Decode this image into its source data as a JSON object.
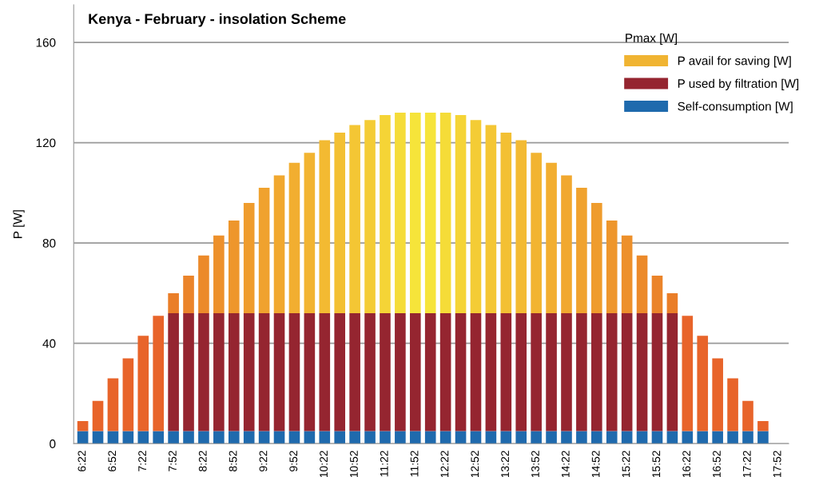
{
  "chart_data": {
    "type": "bar",
    "title": "Kenya - February - insolation Scheme",
    "ylabel": "P [W]",
    "legend_title": "Pmax [W]",
    "categories": [
      "6:22",
      null,
      "6:52",
      null,
      "7:22",
      null,
      "7:52",
      null,
      "8:22",
      null,
      "8:52",
      null,
      "9:22",
      null,
      "9:52",
      null,
      "10:22",
      null,
      "10:52",
      null,
      "11:22",
      null,
      "11:52",
      null,
      "12:22",
      null,
      "12:52",
      null,
      "13:22",
      null,
      "13:52",
      null,
      "14:22",
      null,
      "14:52",
      null,
      "15:22",
      null,
      "15:52",
      null,
      "16:22",
      null,
      "16:52",
      null,
      "17:22",
      null,
      "17:52"
    ],
    "stacked": true,
    "ylim": [
      0,
      175
    ],
    "yticks": [
      0,
      40,
      80,
      120,
      160
    ],
    "grid": "y",
    "legend": "top right",
    "series": [
      {
        "name": "Self-consumption [W]",
        "color": "#1f6aad",
        "values": [
          5,
          5,
          5,
          5,
          5,
          5,
          5,
          5,
          5,
          5,
          5,
          5,
          5,
          5,
          5,
          5,
          5,
          5,
          5,
          5,
          5,
          5,
          5,
          5,
          5,
          5,
          5,
          5,
          5,
          5,
          5,
          5,
          5,
          5,
          5,
          5,
          5,
          5,
          5,
          5,
          5,
          5,
          5,
          5,
          5,
          5,
          null
        ]
      },
      {
        "name": "P used by filtration [W]",
        "color": "#952530",
        "values": [
          null,
          null,
          null,
          null,
          null,
          null,
          47,
          47,
          47,
          47,
          47,
          47,
          47,
          47,
          47,
          47,
          47,
          47,
          47,
          47,
          47,
          47,
          47,
          47,
          47,
          47,
          47,
          47,
          47,
          47,
          47,
          47,
          47,
          47,
          47,
          47,
          47,
          47,
          47,
          47,
          null,
          null,
          null,
          null,
          null,
          null,
          null
        ]
      },
      {
        "name": "P avail for saving [W]",
        "color": "#f0b432",
        "values": [
          4,
          12,
          21,
          29,
          38,
          46,
          8,
          15,
          23,
          31,
          37,
          44,
          50,
          55,
          60,
          64,
          69,
          72,
          75,
          77,
          79,
          80,
          80,
          80,
          80,
          79,
          77,
          75,
          72,
          69,
          64,
          60,
          55,
          50,
          44,
          37,
          31,
          23,
          15,
          8,
          46,
          38,
          29,
          21,
          12,
          4,
          null
        ],
        "colors": [
          "#e8642a",
          "#e8642a",
          "#e8642a",
          "#e8642a",
          "#e8642a",
          "#e8642a",
          "#ea7e28",
          "#eb842a",
          "#ec8a2a",
          "#ed902b",
          "#ee962c",
          "#ef9c2d",
          "#f0a22e",
          "#f1a82f",
          "#f2ae30",
          "#f2b431",
          "#f3ba32",
          "#f3c033",
          "#f4c634",
          "#f4cc35",
          "#f5d436",
          "#f5dc38",
          "#f6e43a",
          "#f6e43a",
          "#f5dc38",
          "#f5d436",
          "#f4cc35",
          "#f4c634",
          "#f3c033",
          "#f3ba32",
          "#f2b431",
          "#f2ae30",
          "#f1a82f",
          "#f0a22e",
          "#ef9c2d",
          "#ee962c",
          "#ed902b",
          "#ec8a2a",
          "#eb842a",
          "#ea7e28",
          "#e8642a",
          "#e8642a",
          "#e8642a",
          "#e8642a",
          "#e8642a",
          "#e8642a",
          "#e8642a"
        ]
      }
    ]
  }
}
